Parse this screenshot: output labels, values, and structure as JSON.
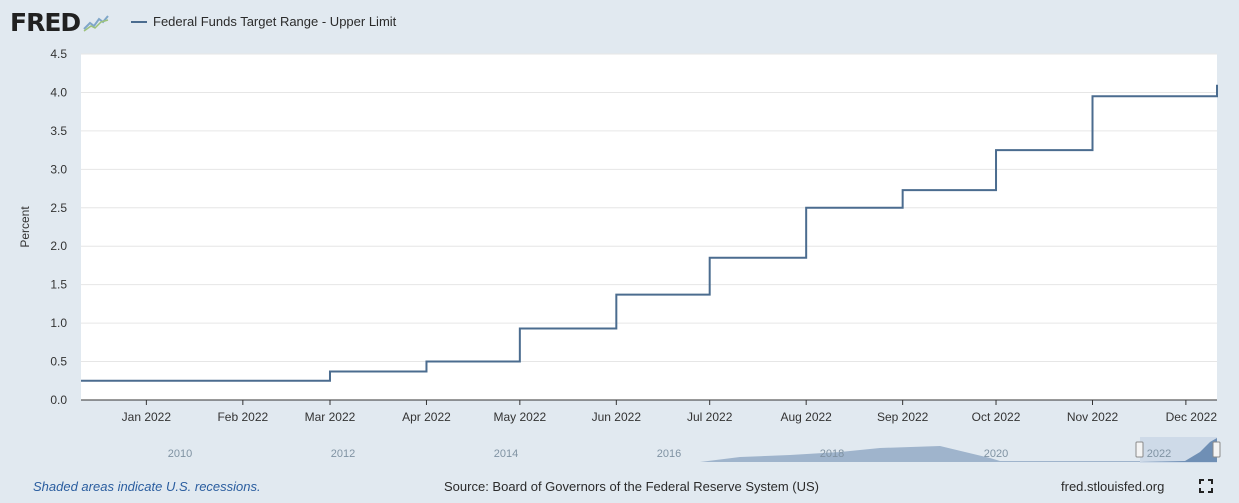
{
  "logo": {
    "text": "FRED"
  },
  "legend": {
    "label": "Federal Funds Target Range - Upper Limit"
  },
  "colors": {
    "series": "#4b6c8f",
    "navigator_fill": "#8aa4c4",
    "background": "#e1e9f0",
    "plot": "#ffffff",
    "recession_note": "#2a5d9f"
  },
  "chart_data": {
    "type": "line",
    "step": true,
    "ylabel": "Percent",
    "ylim": [
      0,
      4.5
    ],
    "yticks": [
      "0.0",
      "0.5",
      "1.0",
      "1.5",
      "2.0",
      "2.5",
      "3.0",
      "3.5",
      "4.0",
      "4.5"
    ],
    "xlim": [
      "2021-12-11",
      "2022-12-11"
    ],
    "xticks": [
      {
        "date": "2022-01-01",
        "label": "Jan 2022"
      },
      {
        "date": "2022-02-01",
        "label": "Feb 2022"
      },
      {
        "date": "2022-03-01",
        "label": "Mar 2022"
      },
      {
        "date": "2022-04-01",
        "label": "Apr 2022"
      },
      {
        "date": "2022-05-01",
        "label": "May 2022"
      },
      {
        "date": "2022-06-01",
        "label": "Jun 2022"
      },
      {
        "date": "2022-07-01",
        "label": "Jul 2022"
      },
      {
        "date": "2022-08-01",
        "label": "Aug 2022"
      },
      {
        "date": "2022-09-01",
        "label": "Sep 2022"
      },
      {
        "date": "2022-10-01",
        "label": "Oct 2022"
      },
      {
        "date": "2022-11-01",
        "label": "Nov 2022"
      },
      {
        "date": "2022-12-01",
        "label": "Dec 2022"
      }
    ],
    "grid": true,
    "series": [
      {
        "name": "Federal Funds Target Range - Upper Limit",
        "points": [
          {
            "x": "2021-12-11",
            "y": 0.25
          },
          {
            "x": "2022-03-01",
            "y": 0.37
          },
          {
            "x": "2022-04-01",
            "y": 0.5
          },
          {
            "x": "2022-05-01",
            "y": 0.93
          },
          {
            "x": "2022-06-01",
            "y": 1.37
          },
          {
            "x": "2022-07-01",
            "y": 1.85
          },
          {
            "x": "2022-08-01",
            "y": 2.5
          },
          {
            "x": "2022-09-01",
            "y": 2.73
          },
          {
            "x": "2022-10-01",
            "y": 3.25
          },
          {
            "x": "2022-11-01",
            "y": 3.95
          },
          {
            "x": "2022-12-11",
            "y": 4.1
          }
        ]
      }
    ]
  },
  "navigator": {
    "labels": [
      "2010",
      "2012",
      "2014",
      "2016",
      "2018",
      "2020",
      "2022"
    ]
  },
  "footer": {
    "recession_note": "Shaded areas indicate U.S. recessions.",
    "source": "Source: Board of Governors of the Federal Reserve System (US)",
    "url": "fred.stlouisfed.org"
  }
}
